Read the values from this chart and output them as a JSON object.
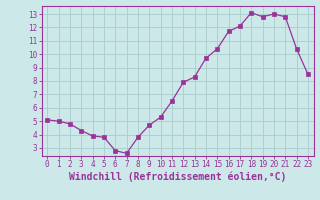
{
  "x": [
    0,
    1,
    2,
    3,
    4,
    5,
    6,
    7,
    8,
    9,
    10,
    11,
    12,
    13,
    14,
    15,
    16,
    17,
    18,
    19,
    20,
    21,
    22,
    23
  ],
  "y": [
    5.1,
    5.0,
    4.8,
    4.3,
    3.9,
    3.8,
    2.8,
    2.6,
    3.8,
    4.7,
    5.3,
    6.5,
    7.9,
    8.3,
    9.7,
    10.4,
    11.7,
    12.1,
    13.1,
    12.8,
    13.0,
    12.8,
    10.4,
    8.5
  ],
  "line_color": "#993399",
  "marker": "s",
  "marker_size": 2.5,
  "background_color": "#cce8e8",
  "grid_color": "#aacccc",
  "xlabel": "Windchill (Refroidissement éolien,°C)",
  "xlim": [
    -0.5,
    23.5
  ],
  "ylim": [
    2.4,
    13.6
  ],
  "yticks": [
    3,
    4,
    5,
    6,
    7,
    8,
    9,
    10,
    11,
    12,
    13
  ],
  "xticks": [
    0,
    1,
    2,
    3,
    4,
    5,
    6,
    7,
    8,
    9,
    10,
    11,
    12,
    13,
    14,
    15,
    16,
    17,
    18,
    19,
    20,
    21,
    22,
    23
  ],
  "tick_fontsize": 5.5,
  "xlabel_fontsize": 7.0,
  "spine_color": "#993399",
  "tick_color": "#993399",
  "axis_label_color": "#993399"
}
